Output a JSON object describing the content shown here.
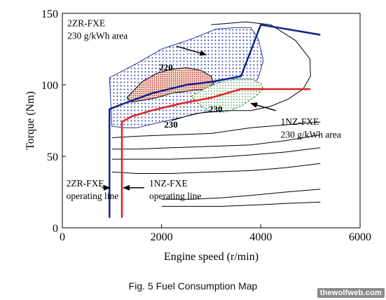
{
  "caption": "Fig. 5 Fuel Consumption Map",
  "watermark": "thewolfweb.com",
  "chart_data": {
    "type": "line",
    "xlabel": "Engine speed (r/min)",
    "ylabel": "Torque (Nm)",
    "xlim": [
      0,
      6000
    ],
    "ylim": [
      0,
      150
    ],
    "xticks": [
      0,
      2000,
      4000,
      6000
    ],
    "xtick_labels": [
      "0",
      "2000",
      "4000",
      "6000"
    ],
    "yticks": [
      0,
      50,
      100,
      150
    ],
    "ytick_labels": [
      "0",
      "50",
      "100",
      "150"
    ],
    "grid": false,
    "series": [
      {
        "name": "2ZR-FXE operating line",
        "color": "#10208c",
        "x": [
          950,
          950,
          1250,
          1800,
          2500,
          3000,
          3600,
          4000,
          5200
        ],
        "y": [
          7,
          83,
          87,
          94,
          100,
          102,
          106,
          142,
          135
        ]
      },
      {
        "name": "1NZ-FXE operating line",
        "color": "#e02020",
        "x": [
          1200,
          1200,
          1400,
          1800,
          2400,
          3000,
          3600,
          4000,
          4500,
          5000
        ],
        "y": [
          7,
          74,
          78,
          82,
          87,
          91,
          97,
          97,
          97,
          97
        ]
      }
    ],
    "regions": [
      {
        "name": "2ZR-FXE 230 g/kWh area",
        "pattern": "blue-dots",
        "x": [
          950,
          950,
          1500,
          2000,
          2600,
          3100,
          3500,
          3800,
          3950,
          4050,
          3950,
          3750,
          3450,
          3000,
          2500,
          2000,
          1500,
          1250,
          1000,
          950
        ],
        "y": [
          105,
          105,
          115,
          125,
          132,
          139,
          140,
          140,
          132,
          117,
          105,
          95,
          87,
          82,
          78,
          74,
          70,
          70,
          71,
          105
        ]
      },
      {
        "name": "2ZR-FXE 220 g/kWh island",
        "pattern": "red-dots",
        "x": [
          1300,
          1600,
          1900,
          2200,
          2500,
          2800,
          3000,
          3050,
          2900,
          2600,
          2200,
          1900,
          1600,
          1400,
          1300
        ],
        "y": [
          91,
          102,
          108,
          111,
          112,
          110,
          106,
          101,
          97,
          96,
          94,
          91,
          89,
          88,
          91
        ]
      },
      {
        "name": "1NZ-FXE 230 g/kWh area",
        "pattern": "green-dots",
        "x": [
          2600,
          2900,
          3200,
          3500,
          3800,
          4000,
          4050,
          3900,
          3600,
          3300,
          3000,
          2800,
          2600
        ],
        "y": [
          92,
          98,
          102,
          104,
          104,
          101,
          97,
          92,
          85,
          81,
          81,
          85,
          92
        ]
      }
    ],
    "contours": [
      {
        "x": [
          3000,
          3700,
          4200,
          4700,
          4990,
          5000,
          4850,
          4550,
          4200,
          3800,
          3300,
          2700,
          2200
        ],
        "y": [
          142,
          144,
          142,
          131,
          118,
          106,
          97,
          90,
          85,
          82,
          82,
          80,
          75
        ]
      },
      {
        "x": [
          1000,
          1500,
          2200,
          3000,
          3800,
          4500,
          5200
        ],
        "y": [
          63,
          64,
          65,
          66,
          70,
          72,
          74
        ]
      },
      {
        "x": [
          1000,
          1500,
          2200,
          3000,
          3800,
          4500,
          5200
        ],
        "y": [
          55,
          55,
          56,
          57,
          58,
          61,
          65
        ]
      },
      {
        "x": [
          1000,
          1500,
          2200,
          3000,
          3800,
          4500,
          5200
        ],
        "y": [
          48,
          48,
          48,
          49,
          51,
          53,
          56
        ]
      },
      {
        "x": [
          1000,
          1500,
          2200,
          3000,
          3800,
          4500,
          5200
        ],
        "y": [
          39,
          38,
          38,
          39,
          40,
          42,
          45
        ]
      },
      {
        "x": [
          2000,
          2600,
          3200,
          3900,
          4500,
          5200
        ],
        "y": [
          20,
          20,
          21,
          23,
          25,
          27
        ]
      },
      {
        "x": [
          2000,
          2600,
          3200,
          3900,
          4500,
          5200
        ],
        "y": [
          15,
          15,
          15,
          16,
          17,
          18
        ]
      }
    ],
    "annotations": [
      {
        "text": "2ZR-FXE",
        "x": 100,
        "y": 141
      },
      {
        "text": "230 g/kWh area",
        "x": 100,
        "y": 132
      },
      {
        "text": "220",
        "x": 1950,
        "y": 110
      },
      {
        "text": "230",
        "x": 2950,
        "y": 81
      },
      {
        "text": "230",
        "x": 2050,
        "y": 70
      },
      {
        "text": "1NZ-FXE",
        "x": 4400,
        "y": 72
      },
      {
        "text": "230 g/kWh area",
        "x": 4400,
        "y": 63
      },
      {
        "text": "2ZR-FXE",
        "x": 80,
        "y": 29
      },
      {
        "text": "operating line",
        "x": 80,
        "y": 20
      },
      {
        "text": "1NZ-FXE",
        "x": 1750,
        "y": 29
      },
      {
        "text": "operating line",
        "x": 1750,
        "y": 20
      }
    ],
    "arrows": [
      {
        "from": [
          2300,
          127
        ],
        "to": [
          2900,
          121
        ]
      },
      {
        "from": [
          4300,
          82
        ],
        "to": [
          3800,
          87
        ]
      },
      {
        "from": [
          800,
          28
        ],
        "to": [
          960,
          28
        ]
      },
      {
        "from": [
          1650,
          28
        ],
        "to": [
          1230,
          28
        ]
      }
    ]
  }
}
